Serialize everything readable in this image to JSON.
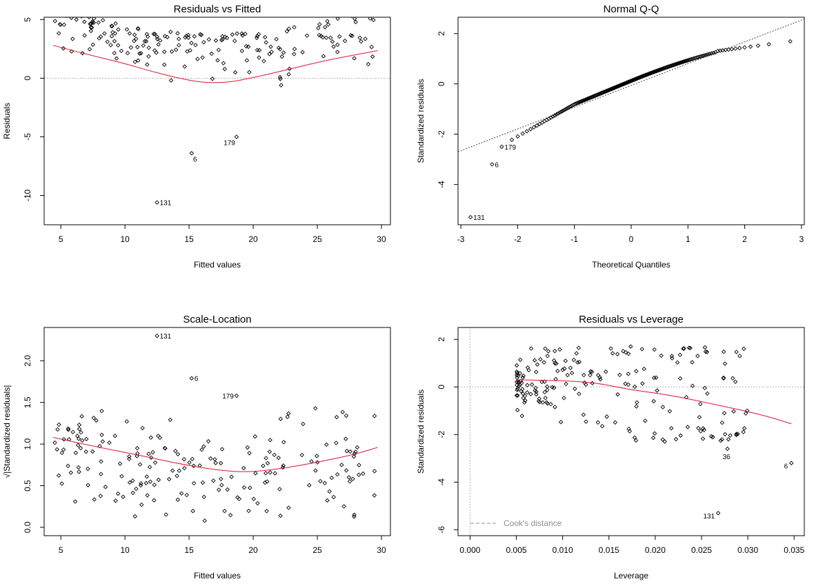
{
  "chart_data": [
    {
      "id": "rvf",
      "type": "scatter",
      "title": "Residuals vs Fitted",
      "xlabel": "Fitted values",
      "ylabel": "Residuals",
      "xlim": [
        3.7,
        30.7
      ],
      "ylim": [
        -12.5,
        5.2
      ],
      "xticks": [
        5,
        10,
        15,
        20,
        25,
        30
      ],
      "yticks": [
        5,
        0,
        -5,
        -10
      ],
      "refline": 0,
      "seed": 7,
      "pattern": "parabola",
      "labeled_points": [
        {
          "x": 12.5,
          "y": -10.6,
          "label": "131"
        },
        {
          "x": 15.2,
          "y": -6.4,
          "label": "6"
        },
        {
          "x": 18.7,
          "y": -5.0,
          "label": "179"
        }
      ],
      "smooth": [
        [
          4.4,
          2.8
        ],
        [
          7,
          2.05
        ],
        [
          10,
          1.25
        ],
        [
          12,
          0.6
        ],
        [
          14,
          0.05
        ],
        [
          16,
          -0.38
        ],
        [
          18,
          -0.38
        ],
        [
          20,
          0.05
        ],
        [
          22,
          0.55
        ],
        [
          25,
          1.35
        ],
        [
          27,
          1.8
        ],
        [
          29.7,
          2.35
        ]
      ]
    },
    {
      "id": "qq",
      "type": "scatter",
      "title": "Normal Q-Q",
      "xlabel": "Theoretical Quantiles",
      "ylabel": "Standardized residuals",
      "xlim": [
        -3.05,
        3.05
      ],
      "ylim": [
        -5.6,
        2.65
      ],
      "xticks": [
        -3,
        -2,
        -1,
        0,
        1,
        2,
        3
      ],
      "yticks": [
        2,
        0,
        -2,
        -4
      ],
      "seed": 11,
      "pattern": "qq",
      "labeled_points": [
        {
          "x": -2.83,
          "y": -5.3,
          "label": "131"
        },
        {
          "x": -2.45,
          "y": -3.2,
          "label": "6"
        },
        {
          "x": -2.28,
          "y": -2.5,
          "label": "179"
        }
      ],
      "qqline": [
        [
          -3.05,
          -2.7
        ],
        [
          3.05,
          2.58
        ]
      ]
    },
    {
      "id": "sl",
      "type": "scatter",
      "title": "Scale-Location",
      "xlabel": "Fitted values",
      "ylabel": "√|Standardized residuals|",
      "xlim": [
        3.7,
        30.7
      ],
      "ylim": [
        -0.1,
        2.4
      ],
      "xticks": [
        5,
        10,
        15,
        20,
        25,
        30
      ],
      "yticks": [
        0.0,
        0.5,
        1.0,
        1.5,
        2.0
      ],
      "seed": 23,
      "pattern": "scale",
      "labeled_points": [
        {
          "x": 12.5,
          "y": 2.3,
          "label": "131"
        },
        {
          "x": 15.2,
          "y": 1.79,
          "label": "6"
        },
        {
          "x": 18.7,
          "y": 1.58,
          "label": "179"
        }
      ],
      "smooth": [
        [
          4.4,
          1.08
        ],
        [
          8,
          0.96
        ],
        [
          11,
          0.87
        ],
        [
          14,
          0.77
        ],
        [
          17,
          0.69
        ],
        [
          19.5,
          0.66
        ],
        [
          22,
          0.7
        ],
        [
          25,
          0.78
        ],
        [
          28,
          0.88
        ],
        [
          29.7,
          0.96
        ]
      ]
    },
    {
      "id": "rvl",
      "type": "scatter",
      "title": "Residuals vs Leverage",
      "xlabel": "Leverage",
      "ylabel": "Standardized residuals",
      "xlim": [
        -0.0013,
        0.0361
      ],
      "ylim": [
        -6.25,
        2.5
      ],
      "xticks": [
        0.0,
        0.005,
        0.01,
        0.015,
        0.02,
        0.025,
        0.03,
        0.035
      ],
      "yticks": [
        2,
        0,
        -2,
        -4,
        -6
      ],
      "refline": 0,
      "vline": 0,
      "seed": 41,
      "pattern": "leverage",
      "labeled_points": [
        {
          "x": 0.0268,
          "y": -5.3,
          "label": "131"
        },
        {
          "x": 0.0347,
          "y": -3.2,
          "label": "6"
        },
        {
          "x": 0.0278,
          "y": -2.6,
          "label": "36"
        }
      ],
      "smooth": [
        [
          0.005,
          0.3
        ],
        [
          0.008,
          0.28
        ],
        [
          0.011,
          0.25
        ],
        [
          0.014,
          0.15
        ],
        [
          0.017,
          -0.1
        ],
        [
          0.02,
          -0.25
        ],
        [
          0.023,
          -0.45
        ],
        [
          0.026,
          -0.7
        ],
        [
          0.029,
          -0.95
        ],
        [
          0.032,
          -1.22
        ],
        [
          0.0347,
          -1.55
        ]
      ],
      "legend": "Cook's distance"
    }
  ]
}
